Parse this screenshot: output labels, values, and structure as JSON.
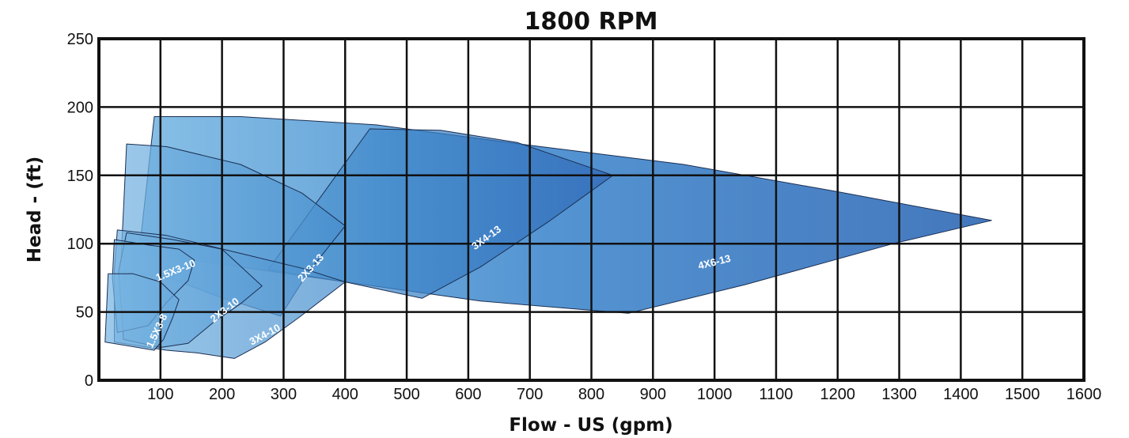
{
  "chart_data": {
    "type": "area",
    "title": "1800 RPM",
    "xlabel": "Flow - US (gpm)",
    "ylabel": "Head - (ft)",
    "xlim": [
      0,
      1600
    ],
    "ylim": [
      0,
      250
    ],
    "x_ticks": [
      0,
      100,
      200,
      300,
      400,
      500,
      600,
      700,
      800,
      900,
      1000,
      1100,
      1200,
      1300,
      1400,
      1500,
      1600
    ],
    "x_tick_labels": [
      "",
      "100",
      "200",
      "300",
      "400",
      "500",
      "600",
      "700",
      "800",
      "900",
      "1000",
      "1100",
      "1200",
      "1300",
      "1400",
      "1500",
      "1600"
    ],
    "y_ticks": [
      0,
      50,
      100,
      150,
      200,
      250
    ],
    "y_tick_labels": [
      "0",
      "50",
      "100",
      "150",
      "200",
      "250"
    ],
    "grid": true,
    "colors": {
      "light": "#86c0e6",
      "mid": "#3f8ccc",
      "dark": "#2c62b0",
      "edge": "#1b2f52"
    },
    "series": [
      {
        "name": "4X6-13",
        "label_pos": [
          1000,
          86
        ],
        "label_rotation": -14,
        "points": [
          [
            90,
            193
          ],
          [
            230,
            193
          ],
          [
            450,
            187
          ],
          [
            700,
            172
          ],
          [
            950,
            158
          ],
          [
            1200,
            138
          ],
          [
            1450,
            117
          ],
          [
            1290,
            100
          ],
          [
            1050,
            70
          ],
          [
            860,
            49
          ],
          [
            620,
            58
          ],
          [
            400,
            72
          ],
          [
            150,
            88
          ],
          [
            65,
            92
          ]
        ]
      },
      {
        "name": "3X4-13",
        "label_pos": [
          630,
          104
        ],
        "label_rotation": -36,
        "points": [
          [
            440,
            184
          ],
          [
            555,
            183
          ],
          [
            680,
            174
          ],
          [
            835,
            150
          ],
          [
            730,
            116
          ],
          [
            620,
            83
          ],
          [
            525,
            60
          ],
          [
            400,
            72
          ],
          [
            275,
            81
          ]
        ]
      },
      {
        "name": "2X3-13",
        "label_pos": [
          345,
          82
        ],
        "label_rotation": -48,
        "points": [
          [
            45,
            173
          ],
          [
            110,
            171
          ],
          [
            230,
            158
          ],
          [
            330,
            137
          ],
          [
            400,
            113
          ],
          [
            340,
            79
          ],
          [
            295,
            47
          ],
          [
            190,
            62
          ],
          [
            120,
            74
          ],
          [
            35,
            80
          ],
          [
            40,
            125
          ]
        ]
      },
      {
        "name": "3X4-10",
        "label_pos": [
          270,
          33
        ],
        "label_rotation": -28,
        "points": [
          [
            30,
            110
          ],
          [
            110,
            106
          ],
          [
            220,
            94
          ],
          [
            330,
            82
          ],
          [
            400,
            72
          ],
          [
            325,
            46
          ],
          [
            270,
            28
          ],
          [
            220,
            16
          ],
          [
            160,
            20
          ],
          [
            110,
            22
          ],
          [
            25,
            28
          ],
          [
            25,
            80
          ]
        ]
      },
      {
        "name": "2X3-10",
        "label_pos": [
          205,
          51
        ],
        "label_rotation": -38,
        "points": [
          [
            45,
            108
          ],
          [
            120,
            103
          ],
          [
            200,
            96
          ],
          [
            265,
            69
          ],
          [
            230,
            56
          ],
          [
            185,
            42
          ],
          [
            145,
            27
          ],
          [
            100,
            24
          ],
          [
            40,
            30
          ],
          [
            32,
            80
          ]
        ]
      },
      {
        "name": "1.5X3-10",
        "label_pos": [
          125,
          80
        ],
        "label_rotation": -22,
        "points": [
          [
            25,
            103
          ],
          [
            80,
            99
          ],
          [
            130,
            96
          ],
          [
            155,
            88
          ],
          [
            145,
            73
          ],
          [
            110,
            57
          ],
          [
            80,
            40
          ],
          [
            30,
            35
          ],
          [
            22,
            75
          ]
        ]
      },
      {
        "name": "1.5X3-8",
        "label_pos": [
          95,
          36
        ],
        "label_rotation": -65,
        "points": [
          [
            15,
            78
          ],
          [
            55,
            78
          ],
          [
            100,
            72
          ],
          [
            130,
            59
          ],
          [
            120,
            46
          ],
          [
            105,
            30
          ],
          [
            90,
            22
          ],
          [
            50,
            25
          ],
          [
            10,
            28
          ]
        ]
      }
    ]
  }
}
